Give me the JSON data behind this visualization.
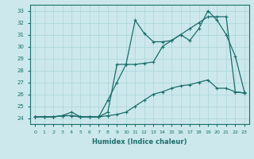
{
  "xlabel": "Humidex (Indice chaleur)",
  "bg_color": "#cce8ec",
  "grid_color": "#aad4d8",
  "line_color": "#1a6e6a",
  "xlim": [
    -0.5,
    23.5
  ],
  "ylim": [
    23.5,
    33.5
  ],
  "xticks": [
    0,
    1,
    2,
    3,
    4,
    5,
    6,
    7,
    8,
    9,
    10,
    11,
    12,
    13,
    14,
    15,
    16,
    17,
    18,
    19,
    20,
    21,
    22,
    23
  ],
  "yticks": [
    24,
    25,
    26,
    27,
    28,
    29,
    30,
    31,
    32,
    33
  ],
  "line1_x": [
    0,
    1,
    2,
    3,
    4,
    5,
    6,
    7,
    8,
    9,
    10,
    11,
    12,
    13,
    14,
    15,
    16,
    17,
    18,
    19,
    20,
    21,
    22,
    23
  ],
  "line1_y": [
    24.1,
    24.1,
    24.1,
    24.2,
    24.5,
    24.1,
    24.1,
    24.1,
    25.5,
    27.0,
    28.5,
    32.2,
    31.1,
    30.4,
    30.4,
    30.5,
    31.0,
    30.5,
    31.5,
    33.0,
    32.2,
    31.0,
    29.2,
    26.2
  ],
  "line2_x": [
    0,
    1,
    2,
    3,
    4,
    5,
    6,
    7,
    8,
    9,
    10,
    11,
    12,
    13,
    14,
    15,
    16,
    17,
    18,
    19,
    20,
    21,
    22,
    23
  ],
  "line2_y": [
    24.1,
    24.1,
    24.1,
    24.2,
    24.2,
    24.1,
    24.1,
    24.1,
    24.5,
    28.5,
    28.5,
    28.5,
    28.6,
    28.7,
    30.0,
    30.5,
    31.0,
    31.5,
    32.0,
    32.5,
    32.5,
    32.5,
    26.2,
    26.1
  ],
  "line3_x": [
    0,
    1,
    2,
    3,
    4,
    5,
    6,
    7,
    8,
    9,
    10,
    11,
    12,
    13,
    14,
    15,
    16,
    17,
    18,
    19,
    20,
    21,
    22,
    23
  ],
  "line3_y": [
    24.1,
    24.1,
    24.1,
    24.2,
    24.2,
    24.1,
    24.1,
    24.1,
    24.2,
    24.3,
    24.5,
    25.0,
    25.5,
    26.0,
    26.2,
    26.5,
    26.7,
    26.8,
    27.0,
    27.2,
    26.5,
    26.5,
    26.2,
    26.1
  ]
}
